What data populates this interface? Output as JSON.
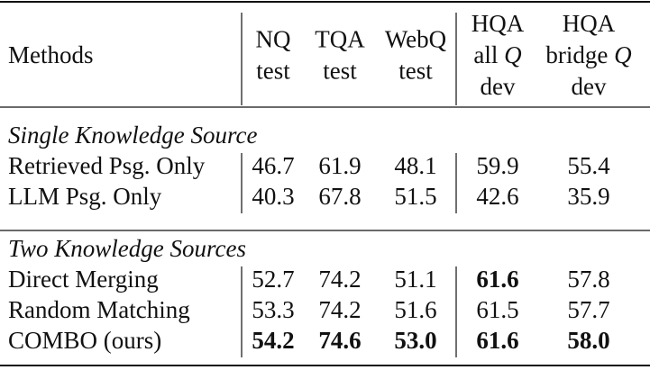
{
  "table": {
    "header": {
      "methods": "Methods",
      "columns": [
        {
          "lines": [
            [
              {
                "text": "NQ"
              }
            ],
            [
              {
                "text": "test"
              }
            ]
          ]
        },
        {
          "lines": [
            [
              {
                "text": "TQA"
              }
            ],
            [
              {
                "text": "test"
              }
            ]
          ]
        },
        {
          "lines": [
            [
              {
                "text": "WebQ"
              }
            ],
            [
              {
                "text": "test"
              }
            ]
          ]
        },
        {
          "lines": [
            [
              {
                "text": "HQA"
              }
            ],
            [
              {
                "text": "all "
              },
              {
                "text": "Q",
                "italic": true
              }
            ],
            [
              {
                "text": "dev"
              }
            ]
          ]
        },
        {
          "lines": [
            [
              {
                "text": "HQA"
              }
            ],
            [
              {
                "text": "bridge "
              },
              {
                "text": "Q",
                "italic": true
              }
            ],
            [
              {
                "text": "dev"
              }
            ]
          ]
        }
      ]
    },
    "sections": [
      {
        "title": "Single Knowledge Source",
        "rows": [
          {
            "method": "Retrieved Psg. Only",
            "cells": [
              {
                "text": "46.7"
              },
              {
                "text": "61.9"
              },
              {
                "text": "48.1"
              },
              {
                "text": "59.9"
              },
              {
                "text": "55.4"
              }
            ]
          },
          {
            "method": "LLM Psg. Only",
            "cells": [
              {
                "text": "40.3"
              },
              {
                "text": "67.8"
              },
              {
                "text": "51.5"
              },
              {
                "text": "42.6"
              },
              {
                "text": "35.9"
              }
            ]
          }
        ]
      },
      {
        "title": "Two Knowledge Sources",
        "rows": [
          {
            "method": "Direct Merging",
            "cells": [
              {
                "text": "52.7"
              },
              {
                "text": "74.2"
              },
              {
                "text": "51.1"
              },
              {
                "text": "61.6",
                "bold": true
              },
              {
                "text": "57.8"
              }
            ]
          },
          {
            "method": "Random Matching",
            "cells": [
              {
                "text": "53.3"
              },
              {
                "text": "74.2"
              },
              {
                "text": "51.6"
              },
              {
                "text": "61.5"
              },
              {
                "text": "57.7"
              }
            ]
          },
          {
            "method": "COMBO (ours)",
            "cells": [
              {
                "text": "54.2",
                "bold": true
              },
              {
                "text": "74.6",
                "bold": true
              },
              {
                "text": "53.0",
                "bold": true
              },
              {
                "text": "61.6",
                "bold": true
              },
              {
                "text": "58.0",
                "bold": true
              }
            ]
          }
        ]
      }
    ]
  }
}
